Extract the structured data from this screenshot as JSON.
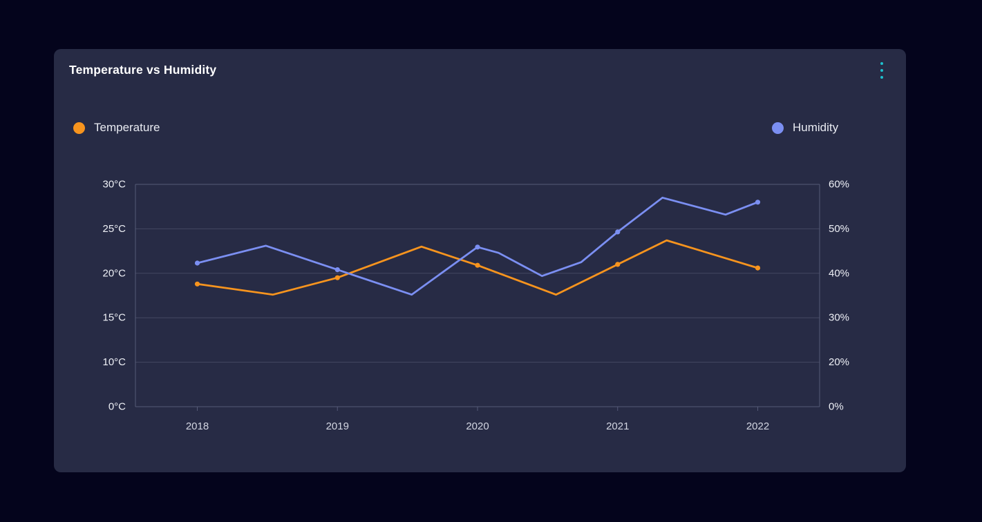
{
  "card": {
    "title": "Temperature vs Humidity"
  },
  "menu": {
    "icon": "kebab-vertical-icon",
    "dot_color": "#1EC0CE"
  },
  "legend": {
    "items": [
      {
        "label": "Temperature",
        "color": "#F7941E"
      },
      {
        "label": "Humidity",
        "color": "#7B8FF2"
      }
    ]
  },
  "colors": {
    "page_bg": "#04041C",
    "card_bg": "#272B45",
    "grid_line": "#454963",
    "plot_border": "#565B78",
    "axis_text": "#EEF0F6",
    "x_axis_text": "#D3D6E2",
    "temperature_series": "#F7941E",
    "humidity_series": "#7B8FF2"
  },
  "chart_data": {
    "type": "line",
    "title": "Temperature vs Humidity",
    "grid": "horizontal",
    "legend_position": "top",
    "x_axis": {
      "ticks": [
        2018,
        2019,
        2020,
        2021,
        2022
      ],
      "tick_labels": [
        "2018",
        "2019",
        "2020",
        "2021",
        "2022"
      ]
    },
    "y_axis_left": {
      "series": "Temperature",
      "unit": "°C",
      "tick_values": [
        30,
        25,
        20,
        15,
        10,
        0
      ],
      "tick_labels": [
        "30°C",
        "25°C",
        "20°C",
        "15°C",
        "10°C",
        "0°C"
      ]
    },
    "y_axis_right": {
      "series": "Humidity",
      "unit": "%",
      "tick_values": [
        60,
        50,
        40,
        30,
        20,
        0
      ],
      "tick_labels": [
        "60%",
        "50%",
        "40%",
        "30%",
        "20%",
        "0%"
      ]
    },
    "series": [
      {
        "name": "Temperature",
        "axis": "left",
        "color": "#F7941E",
        "marker_x": [
          2018,
          2019,
          2020,
          2021,
          2022
        ],
        "points": [
          [
            2018,
            18.8
          ],
          [
            2018.54,
            17.6
          ],
          [
            2019,
            19.5
          ],
          [
            2019.6,
            23.0
          ],
          [
            2020,
            20.9
          ],
          [
            2020.56,
            17.6
          ],
          [
            2021,
            21.0
          ],
          [
            2021.35,
            23.7
          ],
          [
            2022,
            20.6
          ]
        ]
      },
      {
        "name": "Humidity",
        "axis": "right",
        "color": "#7B8FF2",
        "marker_x": [
          2018,
          2019,
          2020,
          2021,
          2022
        ],
        "points": [
          [
            2018,
            42.3
          ],
          [
            2018.49,
            46.2
          ],
          [
            2019,
            40.8
          ],
          [
            2019.53,
            35.2
          ],
          [
            2020,
            45.9
          ],
          [
            2020.15,
            44.6
          ],
          [
            2020.46,
            39.4
          ],
          [
            2020.74,
            42.5
          ],
          [
            2021,
            49.3
          ],
          [
            2021.32,
            57.0
          ],
          [
            2021.77,
            53.2
          ],
          [
            2022,
            56.0
          ]
        ]
      }
    ]
  }
}
